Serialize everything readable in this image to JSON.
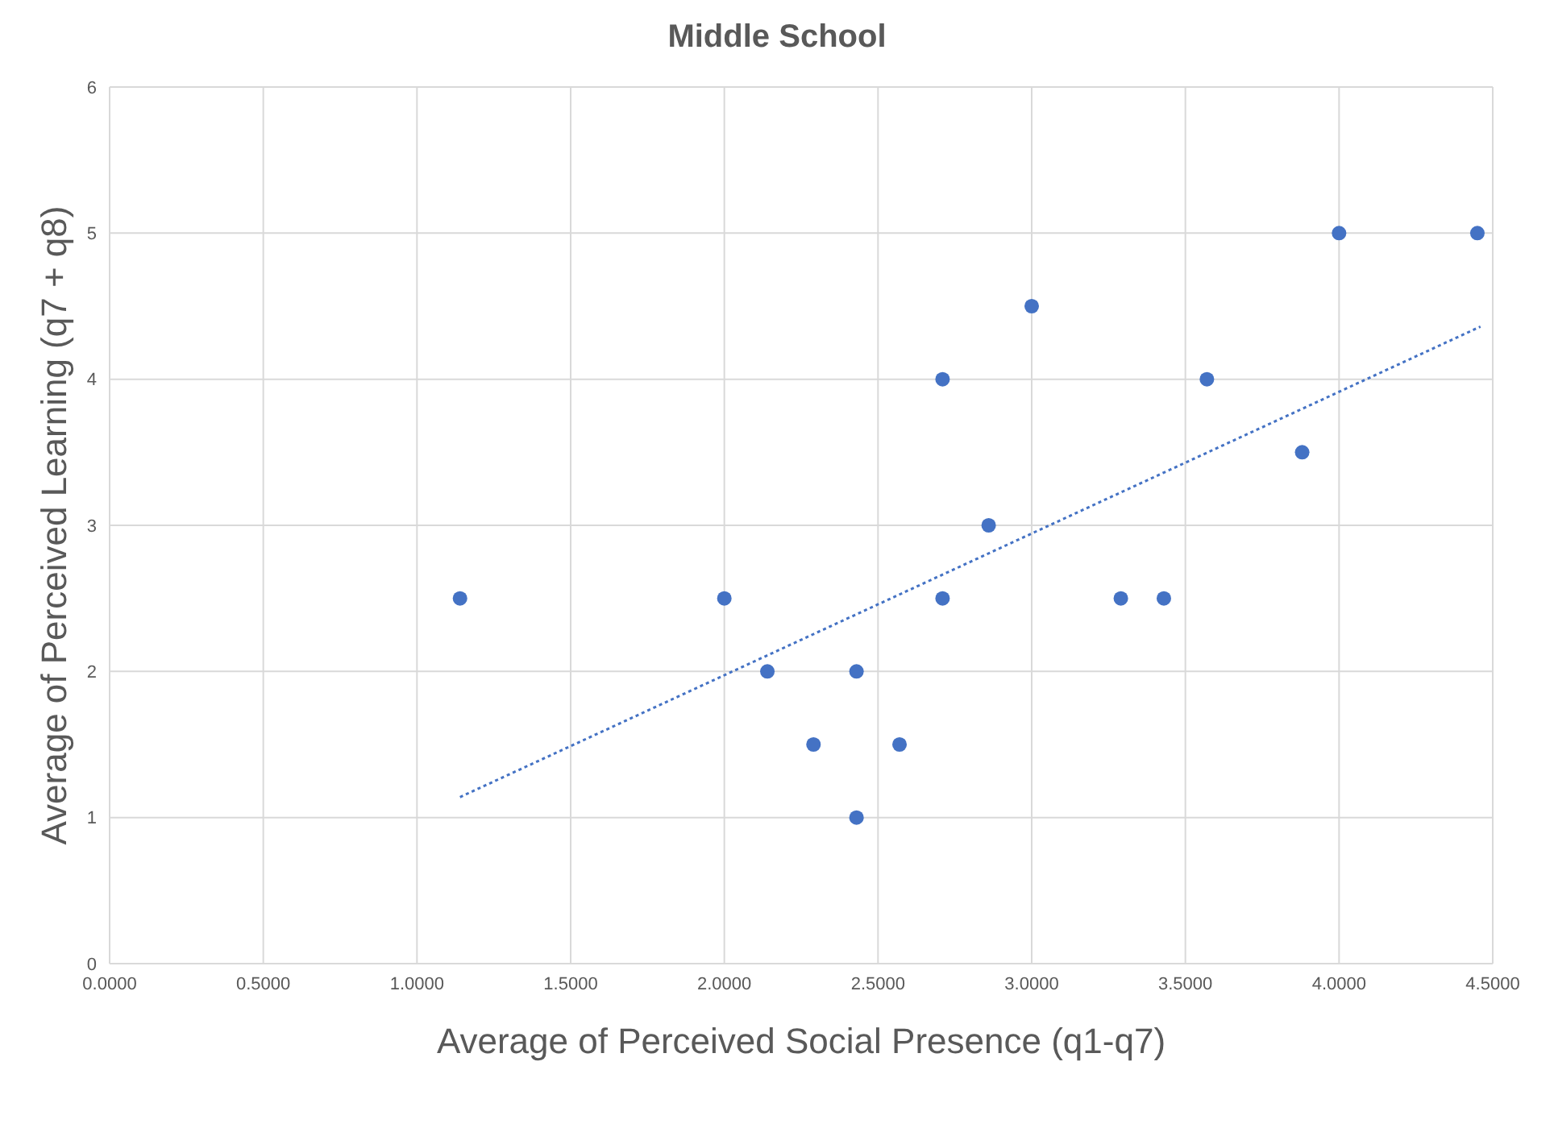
{
  "chart_data": {
    "type": "scatter",
    "title": "Middle School",
    "xlabel": "Average of Perceived Social Presence  (q1-q7)",
    "ylabel": "Average of  Perceived Learning (q7 + q8)",
    "xlim": [
      0,
      4.5
    ],
    "xticks": [
      {
        "value": 0,
        "label": "0.0000"
      },
      {
        "value": 0.5,
        "label": "0.5000"
      },
      {
        "value": 1,
        "label": "1.0000"
      },
      {
        "value": 1.5,
        "label": "1.5000"
      },
      {
        "value": 2,
        "label": "2.0000"
      },
      {
        "value": 2.5,
        "label": "2.5000"
      },
      {
        "value": 3,
        "label": "3.0000"
      },
      {
        "value": 3.5,
        "label": "3.5000"
      },
      {
        "value": 4,
        "label": "4.0000"
      },
      {
        "value": 4.5,
        "label": "4.5000"
      }
    ],
    "ylim": [
      0,
      6
    ],
    "yticks": [
      0,
      1,
      2,
      3,
      4,
      5,
      6
    ],
    "grid": true,
    "marker": "circle",
    "series": [
      {
        "color": "#4472c4",
        "x": [
          1.14,
          2.0,
          2.14,
          2.29,
          2.43,
          2.43,
          2.57,
          2.71,
          2.71,
          2.86,
          3.0,
          3.29,
          3.43,
          3.57,
          3.88,
          4.0,
          4.45
        ],
        "values": [
          2.5,
          2.5,
          2,
          1.5,
          2,
          1,
          1.5,
          4,
          2.5,
          3,
          4.5,
          2.5,
          2.5,
          4,
          3.5,
          5,
          5
        ]
      },
      {
        "type": "line",
        "color": "#4472c4",
        "line_style": "dotted",
        "marker": "none",
        "x": [
          1.14,
          4.46
        ],
        "values": [
          1.14,
          4.36
        ]
      }
    ]
  }
}
